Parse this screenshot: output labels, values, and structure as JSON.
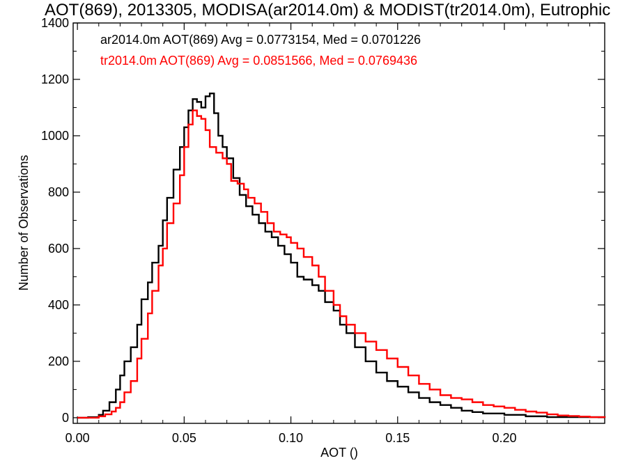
{
  "chart_data": {
    "type": "line",
    "title": "AOT(869), 2013305, MODISA(ar2014.0m) & MODIST(tr2014.0m), Eutrophic",
    "xlabel": "AOT ()",
    "ylabel": "Number of Observations",
    "xlim": [
      -0.002,
      0.247
    ],
    "ylim": [
      -20,
      1400
    ],
    "x_ticks": [
      0.0,
      0.05,
      0.1,
      0.15,
      0.2
    ],
    "x_tick_labels": [
      "0.00",
      "0.05",
      "0.10",
      "0.15",
      "0.20"
    ],
    "y_ticks": [
      0,
      200,
      400,
      600,
      800,
      1000,
      1200,
      1400
    ],
    "y_tick_labels": [
      "0",
      "200",
      "400",
      "600",
      "800",
      "1000",
      "1200",
      "1400"
    ],
    "grid": false,
    "legend_position": "top-left",
    "stepped": true,
    "series": [
      {
        "name": "ar2014.0m AOT(869) Avg = 0.0773154, Med = 0.0701226",
        "color": "#000000",
        "points": [
          [
            0.0,
            0
          ],
          [
            0.005,
            2
          ],
          [
            0.01,
            10
          ],
          [
            0.012,
            25
          ],
          [
            0.015,
            55
          ],
          [
            0.018,
            100
          ],
          [
            0.02,
            150
          ],
          [
            0.022,
            200
          ],
          [
            0.025,
            250
          ],
          [
            0.028,
            330
          ],
          [
            0.03,
            420
          ],
          [
            0.033,
            480
          ],
          [
            0.035,
            550
          ],
          [
            0.038,
            610
          ],
          [
            0.04,
            700
          ],
          [
            0.042,
            780
          ],
          [
            0.045,
            880
          ],
          [
            0.048,
            960
          ],
          [
            0.05,
            1030
          ],
          [
            0.052,
            1090
          ],
          [
            0.054,
            1130
          ],
          [
            0.056,
            1120
          ],
          [
            0.058,
            1100
          ],
          [
            0.06,
            1140
          ],
          [
            0.062,
            1150
          ],
          [
            0.064,
            1080
          ],
          [
            0.066,
            1000
          ],
          [
            0.068,
            960
          ],
          [
            0.07,
            920
          ],
          [
            0.073,
            850
          ],
          [
            0.076,
            790
          ],
          [
            0.079,
            750
          ],
          [
            0.082,
            720
          ],
          [
            0.085,
            690
          ],
          [
            0.088,
            660
          ],
          [
            0.091,
            640
          ],
          [
            0.094,
            610
          ],
          [
            0.097,
            580
          ],
          [
            0.1,
            550
          ],
          [
            0.103,
            500
          ],
          [
            0.106,
            490
          ],
          [
            0.11,
            470
          ],
          [
            0.113,
            450
          ],
          [
            0.116,
            410
          ],
          [
            0.12,
            380
          ],
          [
            0.123,
            330
          ],
          [
            0.126,
            300
          ],
          [
            0.13,
            250
          ],
          [
            0.135,
            200
          ],
          [
            0.14,
            160
          ],
          [
            0.145,
            130
          ],
          [
            0.15,
            110
          ],
          [
            0.155,
            90
          ],
          [
            0.16,
            70
          ],
          [
            0.165,
            55
          ],
          [
            0.17,
            45
          ],
          [
            0.175,
            35
          ],
          [
            0.18,
            25
          ],
          [
            0.185,
            20
          ],
          [
            0.19,
            15
          ],
          [
            0.2,
            10
          ],
          [
            0.21,
            5
          ],
          [
            0.22,
            2
          ],
          [
            0.247,
            0
          ]
        ]
      },
      {
        "name": "tr2014.0m AOT(869) Avg = 0.0851566, Med = 0.0769436",
        "color": "#ff0000",
        "points": [
          [
            0.0,
            0
          ],
          [
            0.005,
            0
          ],
          [
            0.01,
            5
          ],
          [
            0.013,
            12
          ],
          [
            0.016,
            22
          ],
          [
            0.018,
            35
          ],
          [
            0.02,
            55
          ],
          [
            0.022,
            90
          ],
          [
            0.025,
            130
          ],
          [
            0.028,
            210
          ],
          [
            0.03,
            280
          ],
          [
            0.033,
            370
          ],
          [
            0.035,
            450
          ],
          [
            0.038,
            540
          ],
          [
            0.04,
            600
          ],
          [
            0.042,
            690
          ],
          [
            0.045,
            760
          ],
          [
            0.048,
            860
          ],
          [
            0.05,
            960
          ],
          [
            0.052,
            1040
          ],
          [
            0.054,
            1090
          ],
          [
            0.056,
            1070
          ],
          [
            0.058,
            1060
          ],
          [
            0.06,
            1020
          ],
          [
            0.062,
            960
          ],
          [
            0.065,
            940
          ],
          [
            0.068,
            920
          ],
          [
            0.07,
            900
          ],
          [
            0.072,
            840
          ],
          [
            0.075,
            830
          ],
          [
            0.078,
            810
          ],
          [
            0.08,
            780
          ],
          [
            0.083,
            760
          ],
          [
            0.086,
            730
          ],
          [
            0.089,
            690
          ],
          [
            0.092,
            660
          ],
          [
            0.095,
            650
          ],
          [
            0.098,
            640
          ],
          [
            0.1,
            620
          ],
          [
            0.103,
            600
          ],
          [
            0.106,
            570
          ],
          [
            0.11,
            540
          ],
          [
            0.113,
            500
          ],
          [
            0.116,
            450
          ],
          [
            0.12,
            400
          ],
          [
            0.123,
            360
          ],
          [
            0.126,
            330
          ],
          [
            0.13,
            300
          ],
          [
            0.135,
            270
          ],
          [
            0.14,
            240
          ],
          [
            0.145,
            210
          ],
          [
            0.15,
            180
          ],
          [
            0.155,
            150
          ],
          [
            0.16,
            120
          ],
          [
            0.165,
            100
          ],
          [
            0.17,
            80
          ],
          [
            0.175,
            70
          ],
          [
            0.18,
            65
          ],
          [
            0.185,
            55
          ],
          [
            0.19,
            45
          ],
          [
            0.195,
            40
          ],
          [
            0.2,
            35
          ],
          [
            0.205,
            28
          ],
          [
            0.21,
            22
          ],
          [
            0.215,
            18
          ],
          [
            0.22,
            12
          ],
          [
            0.225,
            8
          ],
          [
            0.23,
            6
          ],
          [
            0.235,
            4
          ],
          [
            0.24,
            2
          ],
          [
            0.247,
            0
          ]
        ]
      }
    ]
  }
}
